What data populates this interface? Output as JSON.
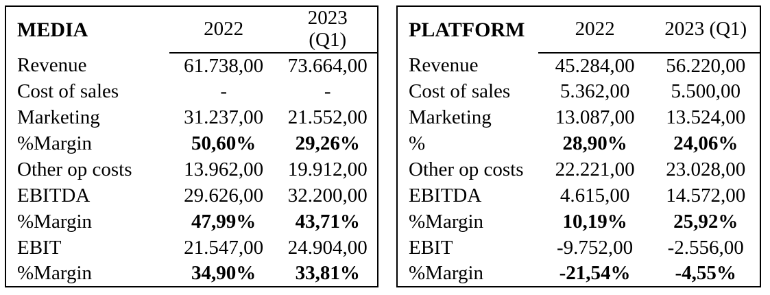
{
  "page": {
    "background_color": "#ffffff",
    "text_color": "#000000",
    "border_color": "#000000"
  },
  "tables": [
    {
      "id": "media",
      "title": "MEDIA",
      "year_headers": [
        "2022",
        "2023\n(Q1)"
      ],
      "rows": [
        {
          "label": "Revenue",
          "values": [
            "61.738,00",
            "73.664,00"
          ],
          "bold": false
        },
        {
          "label": "Cost of sales",
          "values": [
            "-",
            "-"
          ],
          "bold": false
        },
        {
          "label": "Marketing",
          "values": [
            "31.237,00",
            "21.552,00"
          ],
          "bold": false
        },
        {
          "label": "%Margin",
          "values": [
            "50,60%",
            "29,26%"
          ],
          "bold": true
        },
        {
          "label": "Other op costs",
          "values": [
            "13.962,00",
            "19.912,00"
          ],
          "bold": false
        },
        {
          "label": "EBITDA",
          "values": [
            "29.626,00",
            "32.200,00"
          ],
          "bold": false
        },
        {
          "label": "%Margin",
          "values": [
            "47,99%",
            "43,71%"
          ],
          "bold": true
        },
        {
          "label": "EBIT",
          "values": [
            "21.547,00",
            "24.904,00"
          ],
          "bold": false
        },
        {
          "label": "%Margin",
          "values": [
            "34,90%",
            "33,81%"
          ],
          "bold": true
        }
      ]
    },
    {
      "id": "platform",
      "title": "PLATFORM",
      "year_headers": [
        "2022",
        "2023 (Q1)"
      ],
      "rows": [
        {
          "label": "Revenue",
          "values": [
            "45.284,00",
            "56.220,00"
          ],
          "bold": false
        },
        {
          "label": "Cost of sales",
          "values": [
            "5.362,00",
            "5.500,00"
          ],
          "bold": false
        },
        {
          "label": "Marketing",
          "values": [
            "13.087,00",
            "13.524,00"
          ],
          "bold": false
        },
        {
          "label": "%",
          "values": [
            "28,90%",
            "24,06%"
          ],
          "bold": true
        },
        {
          "label": "Other op costs",
          "values": [
            "22.221,00",
            "23.028,00"
          ],
          "bold": false
        },
        {
          "label": "EBITDA",
          "values": [
            "4.615,00",
            "14.572,00"
          ],
          "bold": false
        },
        {
          "label": "%Margin",
          "values": [
            "10,19%",
            "25,92%"
          ],
          "bold": true
        },
        {
          "label": "EBIT",
          "values": [
            "-9.752,00",
            "-2.556,00"
          ],
          "bold": false
        },
        {
          "label": "%Margin",
          "values": [
            "-21,54%",
            "-4,55%"
          ],
          "bold": true
        }
      ]
    }
  ]
}
